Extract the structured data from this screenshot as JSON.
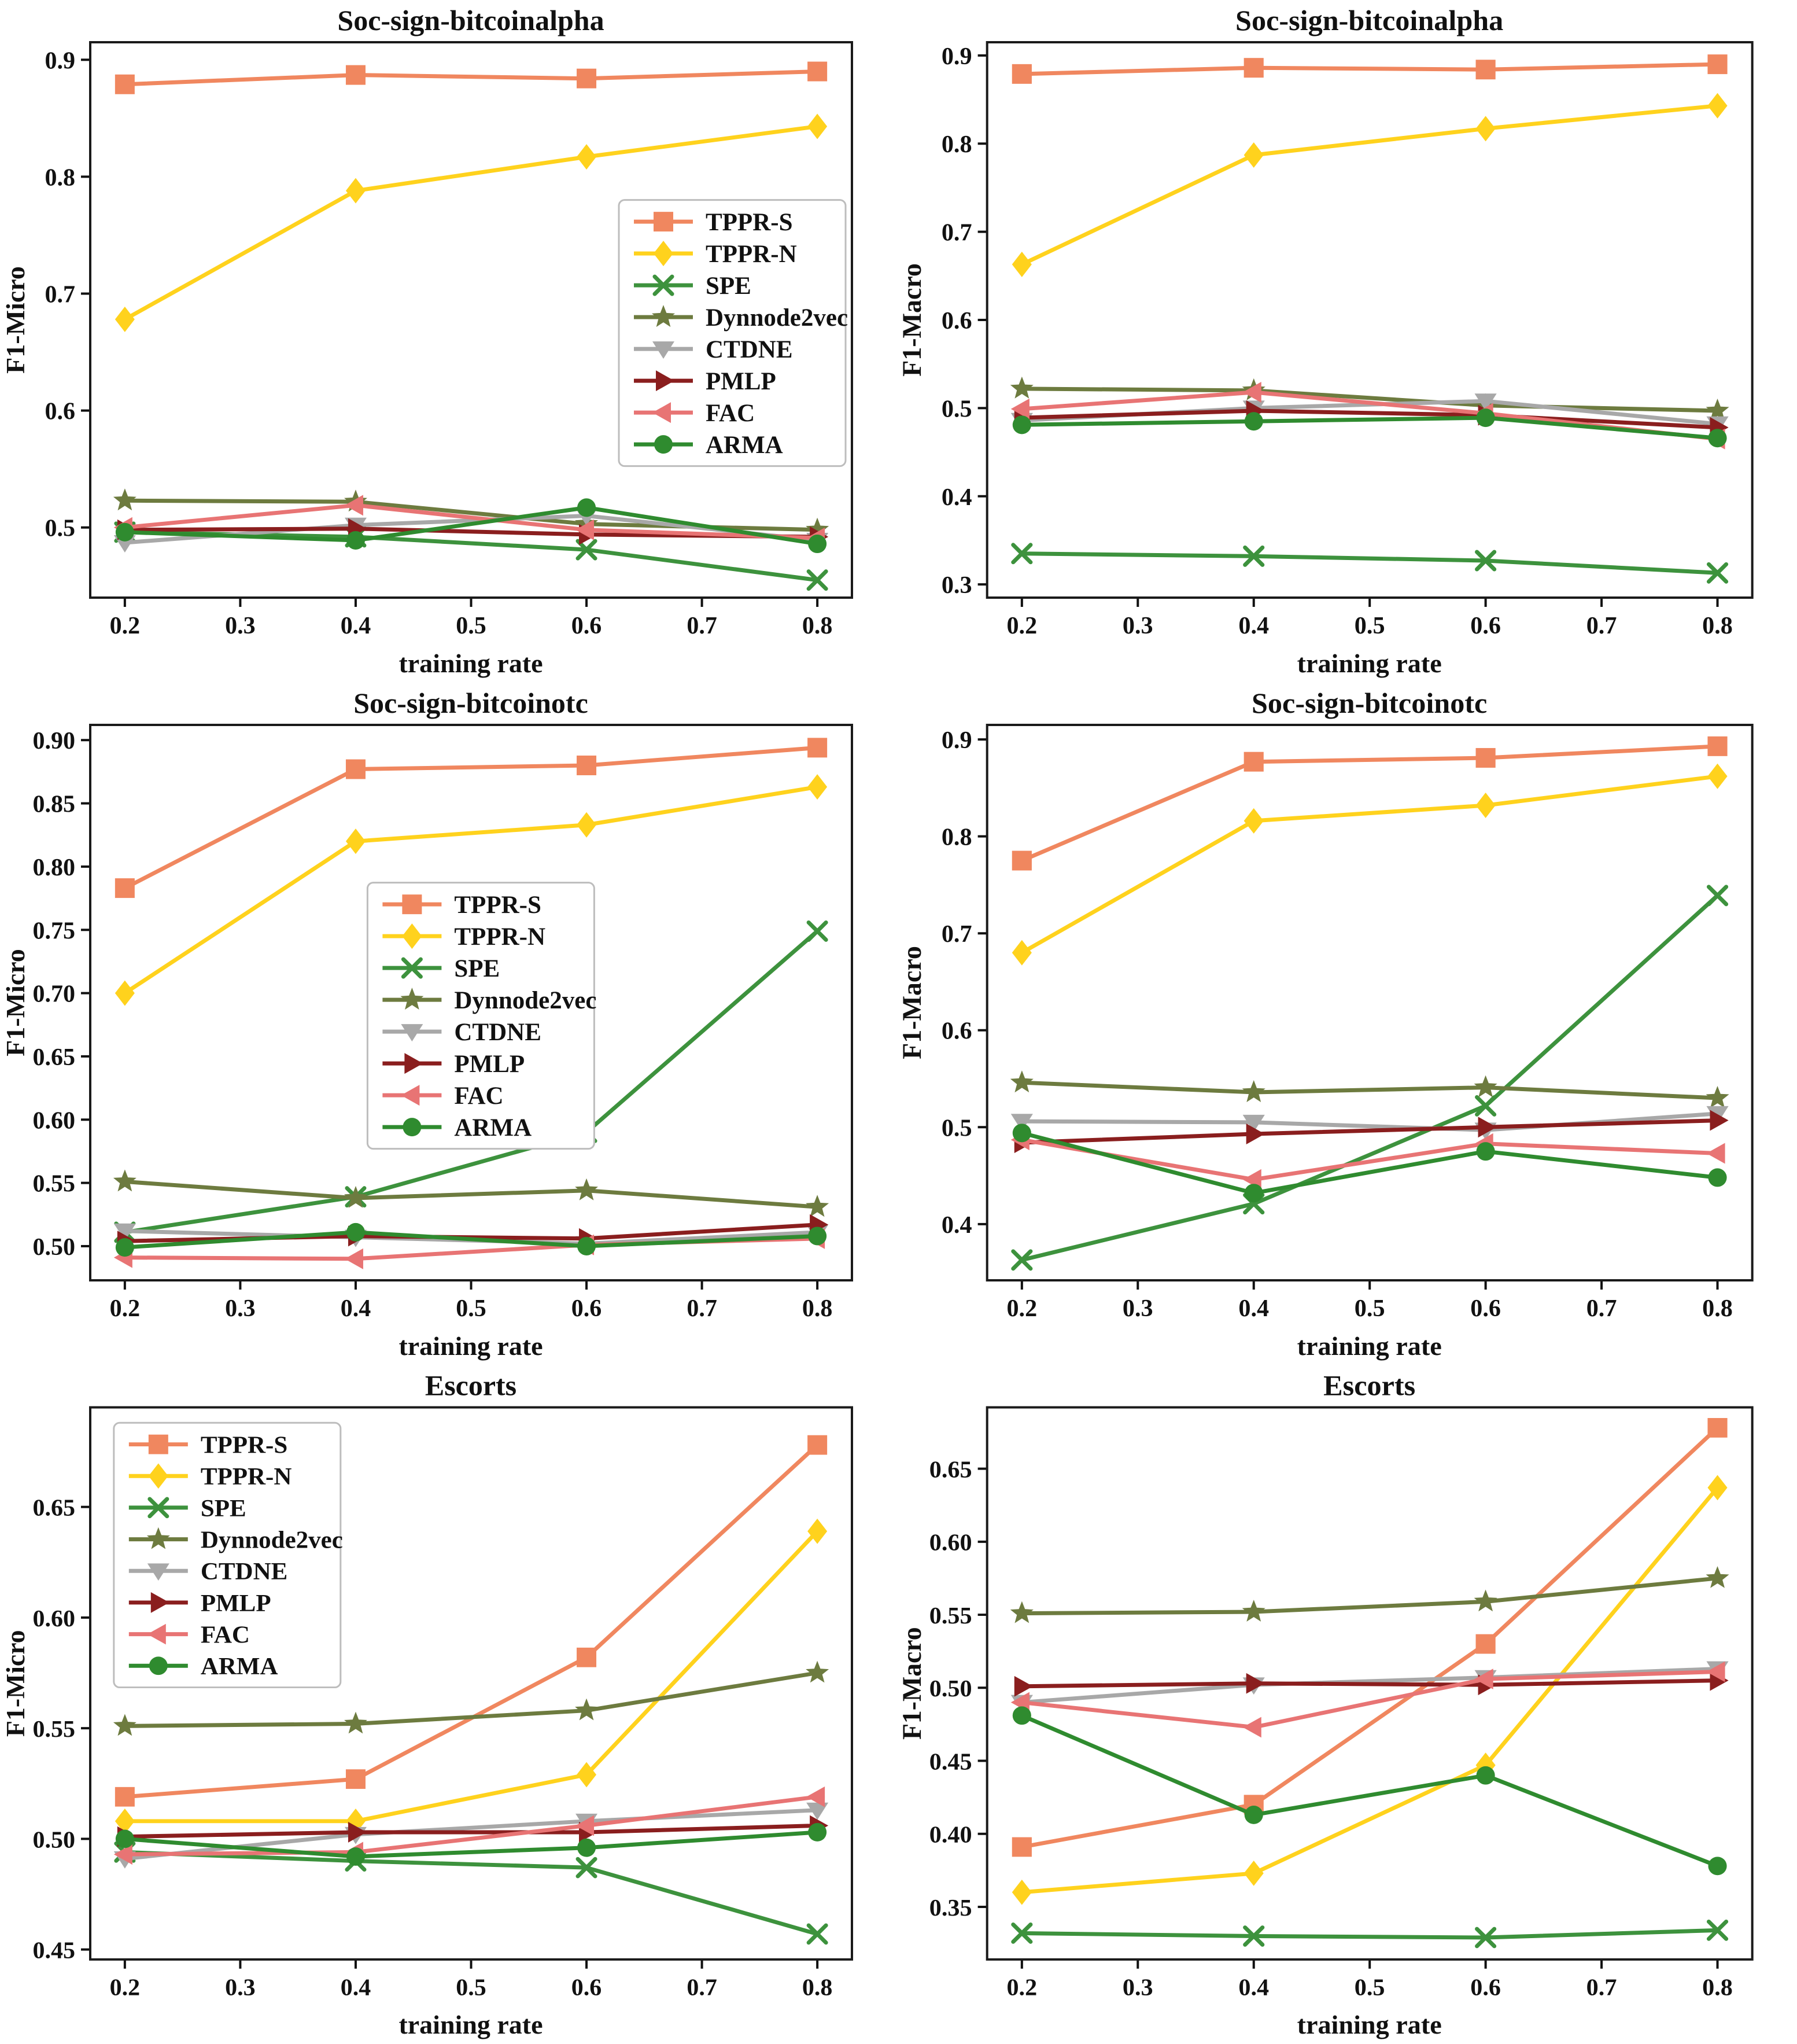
{
  "page": {
    "background": "#ffffff"
  },
  "series_styles": [
    {
      "name": "TPPR-S",
      "color": "#F0875F",
      "marker": "square"
    },
    {
      "name": "TPPR-N",
      "color": "#FFD21D",
      "marker": "diamond"
    },
    {
      "name": "SPE",
      "color": "#3D923D",
      "marker": "x"
    },
    {
      "name": "Dynnode2vec",
      "color": "#6D7B3F",
      "marker": "star"
    },
    {
      "name": "CTDNE",
      "color": "#A8A8A8",
      "marker": "triangle-down"
    },
    {
      "name": "PMLP",
      "color": "#8A1E1E",
      "marker": "triangle-right"
    },
    {
      "name": "FAC",
      "color": "#E87474",
      "marker": "triangle-left"
    },
    {
      "name": "ARMA",
      "color": "#2F8B2F",
      "marker": "circle"
    }
  ],
  "chart_data": [
    {
      "type": "line",
      "title": "Soc-sign-bitcoinalpha",
      "xlabel": "training rate",
      "ylabel": "F1-Micro",
      "x": [
        0.2,
        0.4,
        0.6,
        0.8
      ],
      "xticks": [
        0.2,
        0.3,
        0.4,
        0.5,
        0.6,
        0.7,
        0.8
      ],
      "xlim": [
        0.17,
        0.83
      ],
      "ylim": [
        0.44,
        0.915
      ],
      "yticks": [
        0.5,
        0.6,
        0.7,
        0.8,
        0.9
      ],
      "ytick_decimals": 1,
      "grid": false,
      "legend": {
        "show": true,
        "x": 0.694,
        "y": 0.284
      },
      "series": [
        {
          "name": "TPPR-S",
          "values": [
            0.879,
            0.887,
            0.884,
            0.89
          ]
        },
        {
          "name": "TPPR-N",
          "values": [
            0.678,
            0.788,
            0.817,
            0.843
          ]
        },
        {
          "name": "SPE",
          "values": [
            0.496,
            0.492,
            0.481,
            0.455
          ]
        },
        {
          "name": "Dynnode2vec",
          "values": [
            0.523,
            0.522,
            0.503,
            0.498
          ]
        },
        {
          "name": "CTDNE",
          "values": [
            0.487,
            0.502,
            0.51,
            0.489
          ]
        },
        {
          "name": "PMLP",
          "values": [
            0.498,
            0.499,
            0.494,
            0.492
          ]
        },
        {
          "name": "FAC",
          "values": [
            0.5,
            0.519,
            0.498,
            0.491
          ]
        },
        {
          "name": "ARMA",
          "values": [
            0.496,
            0.489,
            0.517,
            0.486
          ]
        }
      ]
    },
    {
      "type": "line",
      "title": "Soc-sign-bitcoinalpha",
      "xlabel": "training rate",
      "ylabel": "F1-Macro",
      "x": [
        0.2,
        0.4,
        0.6,
        0.8
      ],
      "xticks": [
        0.2,
        0.3,
        0.4,
        0.5,
        0.6,
        0.7,
        0.8
      ],
      "xlim": [
        0.17,
        0.83
      ],
      "ylim": [
        0.285,
        0.915
      ],
      "yticks": [
        0.3,
        0.4,
        0.5,
        0.6,
        0.7,
        0.8,
        0.9
      ],
      "ytick_decimals": 1,
      "grid": false,
      "legend": {
        "show": false
      },
      "series": [
        {
          "name": "TPPR-S",
          "values": [
            0.879,
            0.886,
            0.884,
            0.89
          ]
        },
        {
          "name": "TPPR-N",
          "values": [
            0.663,
            0.787,
            0.817,
            0.843
          ]
        },
        {
          "name": "SPE",
          "values": [
            0.335,
            0.332,
            0.327,
            0.313
          ]
        },
        {
          "name": "Dynnode2vec",
          "values": [
            0.522,
            0.52,
            0.503,
            0.497
          ]
        },
        {
          "name": "CTDNE",
          "values": [
            0.486,
            0.5,
            0.508,
            0.482
          ]
        },
        {
          "name": "PMLP",
          "values": [
            0.489,
            0.497,
            0.492,
            0.478
          ]
        },
        {
          "name": "FAC",
          "values": [
            0.499,
            0.518,
            0.494,
            0.465
          ]
        },
        {
          "name": "ARMA",
          "values": [
            0.481,
            0.485,
            0.489,
            0.466
          ]
        }
      ]
    },
    {
      "type": "line",
      "title": "Soc-sign-bitcoinotc",
      "xlabel": "training rate",
      "ylabel": "F1-Micro",
      "x": [
        0.2,
        0.4,
        0.6,
        0.8
      ],
      "xticks": [
        0.2,
        0.3,
        0.4,
        0.5,
        0.6,
        0.7,
        0.8
      ],
      "xlim": [
        0.17,
        0.83
      ],
      "ylim": [
        0.473,
        0.912
      ],
      "yticks": [
        0.5,
        0.55,
        0.6,
        0.65,
        0.7,
        0.75,
        0.8,
        0.85,
        0.9
      ],
      "ytick_decimals": 2,
      "grid": false,
      "legend": {
        "show": true,
        "x": 0.364,
        "y": 0.284
      },
      "series": [
        {
          "name": "TPPR-S",
          "values": [
            0.783,
            0.877,
            0.88,
            0.894
          ]
        },
        {
          "name": "TPPR-N",
          "values": [
            0.7,
            0.82,
            0.833,
            0.863
          ]
        },
        {
          "name": "SPE",
          "values": [
            0.511,
            0.539,
            0.59,
            0.749
          ]
        },
        {
          "name": "Dynnode2vec",
          "values": [
            0.551,
            0.538,
            0.544,
            0.531
          ]
        },
        {
          "name": "CTDNE",
          "values": [
            0.512,
            0.507,
            0.502,
            0.511
          ]
        },
        {
          "name": "PMLP",
          "values": [
            0.504,
            0.508,
            0.506,
            0.517
          ]
        },
        {
          "name": "FAC",
          "values": [
            0.491,
            0.49,
            0.501,
            0.506
          ]
        },
        {
          "name": "ARMA",
          "values": [
            0.499,
            0.511,
            0.5,
            0.508
          ]
        }
      ]
    },
    {
      "type": "line",
      "title": "Soc-sign-bitcoinotc",
      "xlabel": "training rate",
      "ylabel": "F1-Macro",
      "x": [
        0.2,
        0.4,
        0.6,
        0.8
      ],
      "xticks": [
        0.2,
        0.3,
        0.4,
        0.5,
        0.6,
        0.7,
        0.8
      ],
      "xlim": [
        0.17,
        0.83
      ],
      "ylim": [
        0.342,
        0.915
      ],
      "yticks": [
        0.4,
        0.5,
        0.6,
        0.7,
        0.8,
        0.9
      ],
      "ytick_decimals": 1,
      "grid": false,
      "legend": {
        "show": false
      },
      "series": [
        {
          "name": "TPPR-S",
          "values": [
            0.775,
            0.877,
            0.881,
            0.893
          ]
        },
        {
          "name": "TPPR-N",
          "values": [
            0.68,
            0.816,
            0.832,
            0.862
          ]
        },
        {
          "name": "SPE",
          "values": [
            0.363,
            0.421,
            0.522,
            0.739
          ]
        },
        {
          "name": "Dynnode2vec",
          "values": [
            0.546,
            0.536,
            0.541,
            0.53
          ]
        },
        {
          "name": "CTDNE",
          "values": [
            0.506,
            0.505,
            0.497,
            0.514
          ]
        },
        {
          "name": "PMLP",
          "values": [
            0.484,
            0.493,
            0.5,
            0.507
          ]
        },
        {
          "name": "FAC",
          "values": [
            0.487,
            0.446,
            0.483,
            0.473
          ]
        },
        {
          "name": "ARMA",
          "values": [
            0.494,
            0.432,
            0.475,
            0.448
          ]
        }
      ]
    },
    {
      "type": "line",
      "title": "Escorts",
      "xlabel": "training rate",
      "ylabel": "F1-Micro",
      "x": [
        0.2,
        0.4,
        0.6,
        0.8
      ],
      "xticks": [
        0.2,
        0.3,
        0.4,
        0.5,
        0.6,
        0.7,
        0.8
      ],
      "xlim": [
        0.17,
        0.83
      ],
      "ylim": [
        0.4455,
        0.695
      ],
      "yticks": [
        0.45,
        0.5,
        0.55,
        0.6,
        0.65
      ],
      "ytick_decimals": 2,
      "grid": false,
      "legend": {
        "show": true,
        "x": 0.031,
        "y": 0.028
      },
      "series": [
        {
          "name": "TPPR-S",
          "values": [
            0.519,
            0.527,
            0.582,
            0.678
          ]
        },
        {
          "name": "TPPR-N",
          "values": [
            0.508,
            0.508,
            0.529,
            0.639
          ]
        },
        {
          "name": "SPE",
          "values": [
            0.494,
            0.49,
            0.487,
            0.457
          ]
        },
        {
          "name": "Dynnode2vec",
          "values": [
            0.551,
            0.552,
            0.558,
            0.575
          ]
        },
        {
          "name": "CTDNE",
          "values": [
            0.491,
            0.502,
            0.508,
            0.513
          ]
        },
        {
          "name": "PMLP",
          "values": [
            0.501,
            0.503,
            0.503,
            0.506
          ]
        },
        {
          "name": "FAC",
          "values": [
            0.493,
            0.494,
            0.506,
            0.519
          ]
        },
        {
          "name": "ARMA",
          "values": [
            0.5,
            0.492,
            0.496,
            0.503
          ]
        }
      ]
    },
    {
      "type": "line",
      "title": "Escorts",
      "xlabel": "training rate",
      "ylabel": "F1-Macro",
      "x": [
        0.2,
        0.4,
        0.6,
        0.8
      ],
      "xticks": [
        0.2,
        0.3,
        0.4,
        0.5,
        0.6,
        0.7,
        0.8
      ],
      "xlim": [
        0.17,
        0.83
      ],
      "ylim": [
        0.314,
        0.692
      ],
      "yticks": [
        0.35,
        0.4,
        0.45,
        0.5,
        0.55,
        0.6,
        0.65
      ],
      "ytick_decimals": 2,
      "grid": false,
      "legend": {
        "show": false
      },
      "series": [
        {
          "name": "TPPR-S",
          "values": [
            0.391,
            0.42,
            0.53,
            0.678
          ]
        },
        {
          "name": "TPPR-N",
          "values": [
            0.36,
            0.373,
            0.447,
            0.637
          ]
        },
        {
          "name": "SPE",
          "values": [
            0.332,
            0.33,
            0.329,
            0.334
          ]
        },
        {
          "name": "Dynnode2vec",
          "values": [
            0.551,
            0.552,
            0.559,
            0.575
          ]
        },
        {
          "name": "CTDNE",
          "values": [
            0.49,
            0.502,
            0.507,
            0.513
          ]
        },
        {
          "name": "PMLP",
          "values": [
            0.501,
            0.503,
            0.502,
            0.505
          ]
        },
        {
          "name": "FAC",
          "values": [
            0.49,
            0.473,
            0.506,
            0.511
          ]
        },
        {
          "name": "ARMA",
          "values": [
            0.481,
            0.413,
            0.44,
            0.378
          ]
        }
      ]
    }
  ]
}
